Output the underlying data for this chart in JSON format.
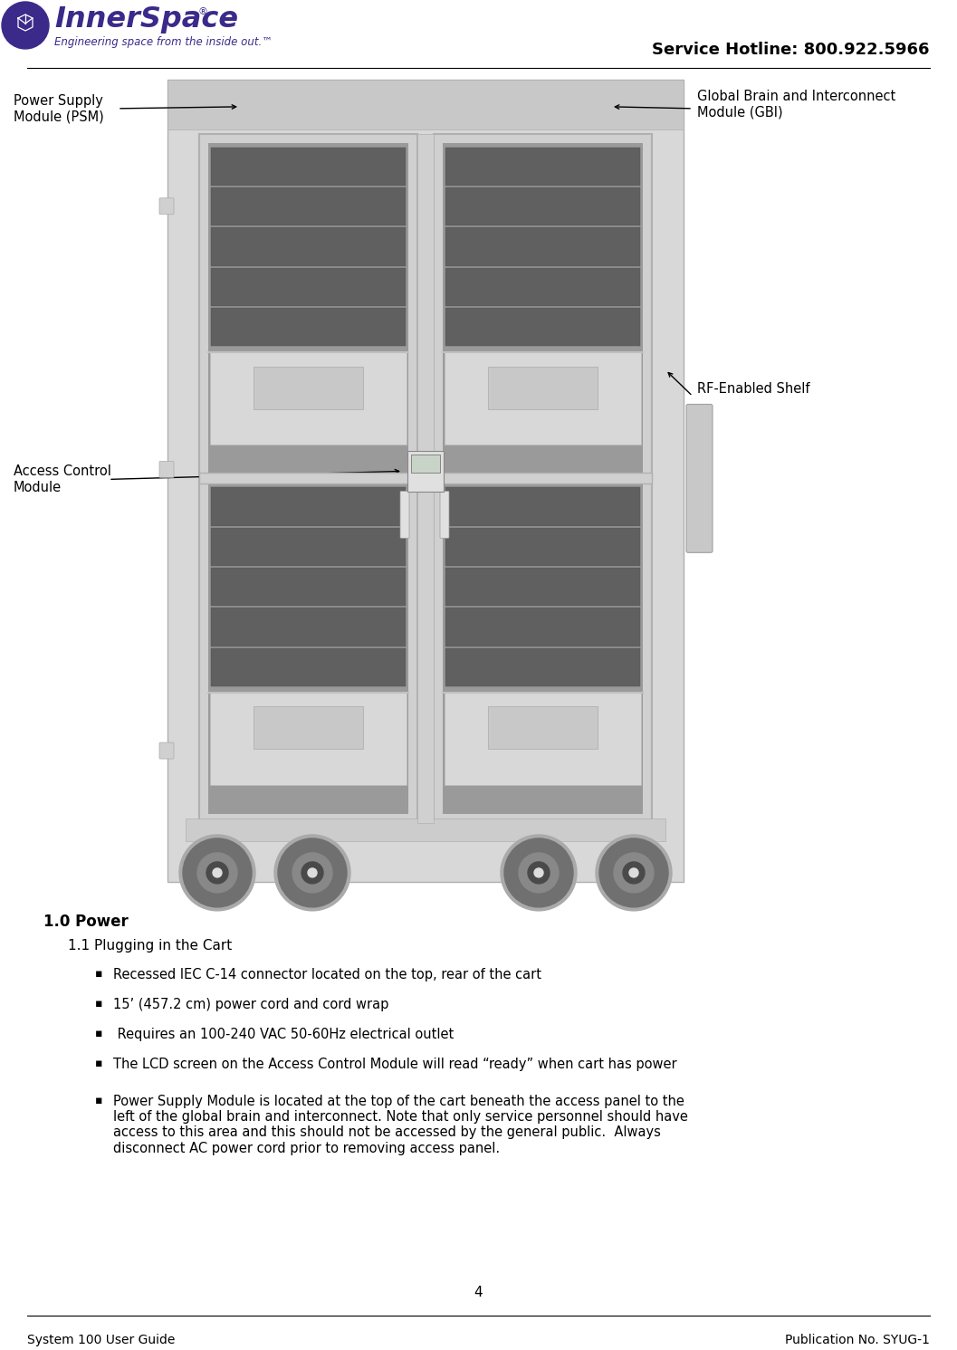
{
  "page_width": 10.57,
  "page_height": 14.91,
  "bg_color": "#ffffff",
  "service_hotline": "Service Hotline: 800.922.5966",
  "innerspace_color": "#3b2a8a",
  "page_number": "4",
  "footer_left": "System 100 User Guide",
  "footer_right": "Publication No. SYUG-1",
  "label_psm": "Power Supply\nModule (PSM)",
  "label_gbi": "Global Brain and Interconnect\nModule (GBI)",
  "label_rf": "RF-Enabled Shelf",
  "label_acm": "Access Control\nModule",
  "section_title": "1.0 Power",
  "subsection": "1.1 Plugging in the Cart",
  "bullets": [
    "Recessed IEC C-14 connector located on the top, rear of the cart",
    "15’ (457.2 cm) power cord and cord wrap",
    " Requires an 100-240 VAC 50-60Hz electrical outlet",
    "The LCD screen on the Access Control Module will read “ready” when cart has power",
    "Power Supply Module is located at the top of the cart beneath the access panel to the\nleft of the global brain and interconnect. Note that only service personnel should have\naccess to this area and this should not be accessed by the general public.  Always\ndisconnect AC power cord prior to removing access panel."
  ],
  "text_color": "#000000",
  "cart_color": "#d4d4d4",
  "cart_dark": "#b8b8b8",
  "cart_frame": "#c0c0c0",
  "shelf_bg": "#888888",
  "bin_color": "#707070",
  "door_glass": "#cccccc"
}
